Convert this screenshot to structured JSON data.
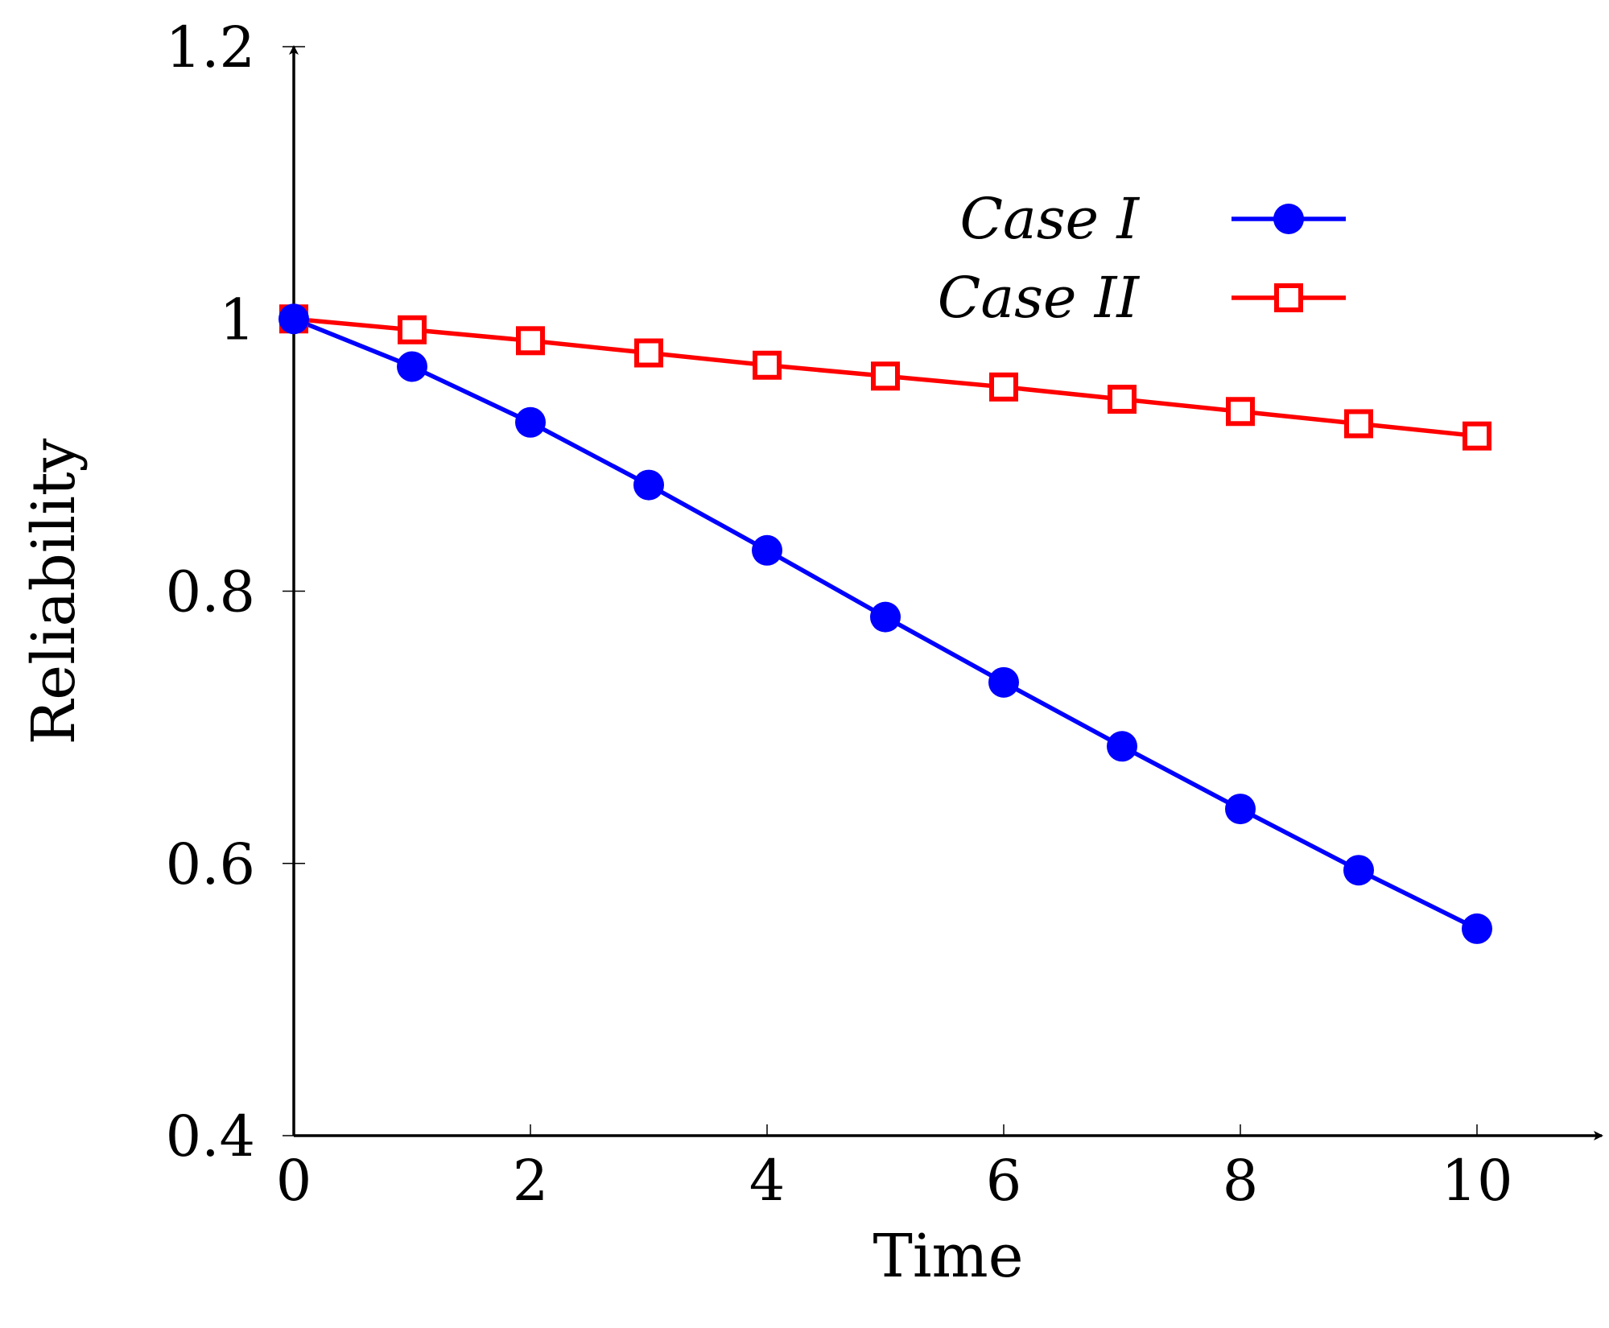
{
  "chart_data": {
    "type": "line",
    "title": "",
    "xlabel": "Time",
    "ylabel": "Reliability",
    "xlim": [
      0,
      11.1
    ],
    "ylim": [
      0.4,
      1.2
    ],
    "x_ticks": [
      0,
      2,
      4,
      6,
      8,
      10
    ],
    "x_tick_labels": [
      "0",
      "2",
      "4",
      "6",
      "8",
      "10"
    ],
    "y_ticks": [
      0.4,
      0.6,
      0.8,
      1.0,
      1.2
    ],
    "y_tick_labels": [
      "0.4",
      "0.6",
      "0.8",
      "1",
      "1.2"
    ],
    "grid": false,
    "legend_position": "top-right",
    "series": [
      {
        "name": "Case I",
        "color": "#0000ff",
        "marker": "filled-circle",
        "x": [
          0,
          1,
          2,
          3,
          4,
          5,
          6,
          7,
          8,
          9,
          10
        ],
        "y": [
          1.0,
          0.965,
          0.924,
          0.878,
          0.83,
          0.781,
          0.733,
          0.686,
          0.64,
          0.595,
          0.552
        ]
      },
      {
        "name": "Case II",
        "color": "#ff0000",
        "marker": "open-square",
        "x": [
          0,
          1,
          2,
          3,
          4,
          5,
          6,
          7,
          8,
          9,
          10
        ],
        "y": [
          1.0,
          0.992,
          0.984,
          0.975,
          0.966,
          0.958,
          0.95,
          0.941,
          0.932,
          0.923,
          0.914
        ]
      }
    ]
  }
}
